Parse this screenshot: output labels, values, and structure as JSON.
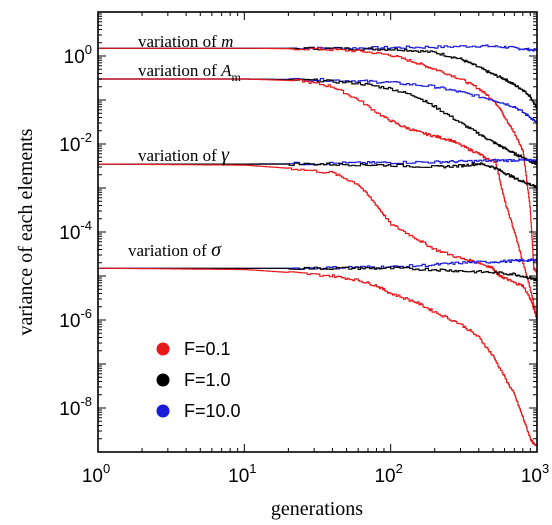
{
  "chart_data": {
    "type": "line",
    "title": "",
    "xlabel": "generations",
    "ylabel": "variance of each elements",
    "xscale": "log",
    "yscale": "log",
    "xlim": [
      1,
      1000
    ],
    "ylim": [
      1e-09,
      10
    ],
    "grid": false,
    "legend_position": "bottom-left",
    "x_ticks": [
      {
        "value": 1,
        "base": "10",
        "exp": "0"
      },
      {
        "value": 10,
        "base": "10",
        "exp": "1"
      },
      {
        "value": 100,
        "base": "10",
        "exp": "2"
      },
      {
        "value": 1000,
        "base": "10",
        "exp": "3"
      }
    ],
    "y_ticks": [
      {
        "value": 1,
        "base": "10",
        "exp": "0"
      },
      {
        "value": 0.01,
        "base": "10",
        "exp": "-2"
      },
      {
        "value": 0.0001,
        "base": "10",
        "exp": "-4"
      },
      {
        "value": 1e-06,
        "base": "10",
        "exp": "-6"
      },
      {
        "value": 1e-08,
        "base": "10",
        "exp": "-8"
      }
    ],
    "annotations": [
      {
        "prefix": "variation of ",
        "symbol": "m",
        "sub": ""
      },
      {
        "prefix": "variation of ",
        "symbol": "A",
        "sub": "m"
      },
      {
        "prefix": "variation of ",
        "symbol": "γ",
        "sub": ""
      },
      {
        "prefix": "variation of ",
        "symbol": "σ",
        "sub": ""
      }
    ],
    "legend": [
      {
        "label": "F=0.1",
        "color": "#e8191c"
      },
      {
        "label": "F=1.0",
        "color": "#000000"
      },
      {
        "label": "F=10.0",
        "color": "#1a1adb"
      }
    ],
    "series": [
      {
        "group": "m",
        "color": "#1a1adb",
        "x": [
          1,
          5,
          20,
          50,
          100,
          200,
          400,
          600,
          800,
          1000
        ],
        "y": [
          1.5,
          1.5,
          1.5,
          1.5,
          1.55,
          1.6,
          1.7,
          1.6,
          1.45,
          1.35
        ]
      },
      {
        "group": "m",
        "color": "#000000",
        "x": [
          1,
          10,
          30,
          70,
          120,
          200,
          300,
          400,
          500,
          600,
          700,
          800,
          900,
          1000
        ],
        "y": [
          1.5,
          1.5,
          1.48,
          1.45,
          1.4,
          1.2,
          0.85,
          0.55,
          0.38,
          0.3,
          0.22,
          0.17,
          0.12,
          0.06
        ]
      },
      {
        "group": "m",
        "color": "#e8191c",
        "x": [
          1,
          10,
          30,
          60,
          100,
          150,
          200,
          300,
          400,
          500,
          550,
          600,
          700,
          800,
          900,
          950,
          1000
        ],
        "y": [
          1.5,
          1.5,
          1.45,
          1.3,
          1.05,
          0.7,
          0.5,
          0.3,
          0.18,
          0.1,
          0.07,
          0.04,
          0.018,
          0.007,
          0.0003,
          1.5e-05,
          1.2e-05
        ]
      },
      {
        "group": "Am",
        "color": "#1a1adb",
        "x": [
          1,
          10,
          30,
          60,
          100,
          200,
          300,
          500,
          700,
          900,
          1000
        ],
        "y": [
          0.3,
          0.3,
          0.29,
          0.27,
          0.25,
          0.2,
          0.15,
          0.1,
          0.07,
          0.04,
          0.03
        ]
      },
      {
        "group": "Am",
        "color": "#000000",
        "x": [
          1,
          10,
          30,
          60,
          100,
          150,
          200,
          300,
          400,
          500,
          600,
          700,
          800,
          900,
          1000
        ],
        "y": [
          0.3,
          0.3,
          0.28,
          0.24,
          0.18,
          0.12,
          0.07,
          0.03,
          0.017,
          0.011,
          0.008,
          0.006,
          0.005,
          0.004,
          0.0035
        ]
      },
      {
        "group": "Am",
        "color": "#e8191c",
        "x": [
          1,
          10,
          25,
          40,
          60,
          90,
          120,
          160,
          200,
          260,
          330,
          400,
          460,
          520,
          600,
          700,
          800,
          900,
          1000
        ],
        "y": [
          0.3,
          0.3,
          0.27,
          0.2,
          0.1,
          0.04,
          0.025,
          0.018,
          0.015,
          0.012,
          0.008,
          0.006,
          0.0045,
          0.004,
          0.0005,
          0.0001,
          2e-05,
          5e-06,
          1e-06
        ]
      },
      {
        "group": "gamma",
        "color": "#1a1adb",
        "x": [
          1,
          10,
          30,
          60,
          100,
          200,
          300,
          500,
          700,
          900,
          1000
        ],
        "y": [
          0.0035,
          0.0035,
          0.0036,
          0.0037,
          0.0038,
          0.0039,
          0.004,
          0.0042,
          0.0043,
          0.0042,
          0.0042
        ]
      },
      {
        "group": "gamma",
        "color": "#000000",
        "x": [
          1,
          10,
          30,
          60,
          100,
          200,
          300,
          400,
          500,
          600,
          700,
          800,
          900,
          1000
        ],
        "y": [
          0.0035,
          0.0035,
          0.0035,
          0.0034,
          0.0033,
          0.003,
          0.0032,
          0.0036,
          0.003,
          0.0022,
          0.0017,
          0.0014,
          0.0012,
          0.001
        ]
      },
      {
        "group": "gamma",
        "color": "#e8191c",
        "x": [
          1,
          10,
          20,
          40,
          60,
          80,
          100,
          150,
          200,
          300,
          400,
          500,
          550,
          600,
          700,
          800,
          900,
          1000
        ],
        "y": [
          0.0035,
          0.0033,
          0.0028,
          0.0022,
          0.0012,
          0.0004,
          0.00015,
          7e-05,
          4e-05,
          2.5e-05,
          2e-05,
          1.5e-05,
          1e-05,
          9e-06,
          7e-06,
          6e-06,
          3e-06,
          1e-06
        ]
      },
      {
        "group": "sigma",
        "color": "#1a1adb",
        "x": [
          1,
          10,
          30,
          60,
          100,
          200,
          300,
          500,
          700,
          900,
          1000
        ],
        "y": [
          1.5e-05,
          1.5e-05,
          1.5e-05,
          1.6e-05,
          1.6e-05,
          1.8e-05,
          2e-05,
          2.1e-05,
          2.2e-05,
          2.3e-05,
          2.3e-05
        ]
      },
      {
        "group": "sigma",
        "color": "#000000",
        "x": [
          1,
          10,
          30,
          60,
          100,
          200,
          300,
          500,
          700,
          900,
          1000
        ],
        "y": [
          1.5e-05,
          1.5e-05,
          1.5e-05,
          1.5e-05,
          1.5e-05,
          1.4e-05,
          1.3e-05,
          1.2e-05,
          1.1e-05,
          9e-06,
          8e-06
        ]
      },
      {
        "group": "sigma",
        "color": "#e8191c",
        "x": [
          1,
          10,
          20,
          40,
          60,
          80,
          100,
          150,
          200,
          300,
          400,
          500,
          600,
          700,
          800,
          900,
          950,
          1000
        ],
        "y": [
          1.5e-05,
          1.4e-05,
          1.2e-05,
          1e-05,
          8e-06,
          6e-06,
          4e-06,
          2.5e-06,
          1.5e-06,
          8e-07,
          4e-07,
          1.5e-07,
          5e-08,
          2e-08,
          6e-09,
          2e-09,
          1.5e-09,
          1.5e-09
        ]
      }
    ]
  }
}
